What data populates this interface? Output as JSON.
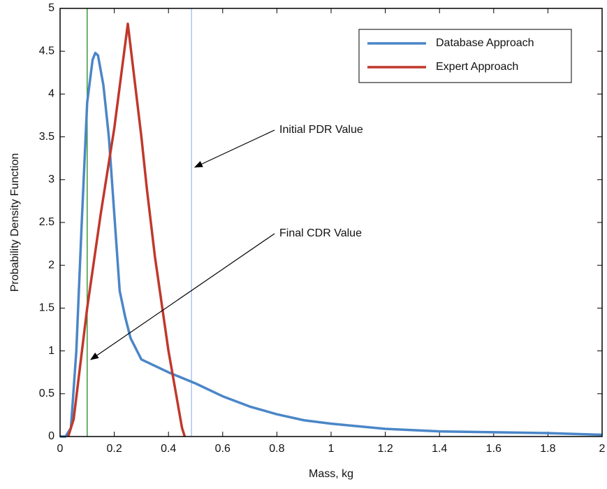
{
  "chart_data": {
    "type": "line",
    "xlabel": "Mass, kg",
    "ylabel": "Probability Density Function",
    "xlim": [
      0,
      2
    ],
    "ylim": [
      0,
      5
    ],
    "xticks": [
      0,
      0.2,
      0.4,
      0.6,
      0.8,
      1,
      1.2,
      1.4,
      1.6,
      1.8,
      2
    ],
    "yticks": [
      0,
      0.5,
      1,
      1.5,
      2,
      2.5,
      3,
      3.5,
      4,
      4.5,
      5
    ],
    "legend": "upper right",
    "series": [
      {
        "name": "Database Approach",
        "color": "#4a86c8",
        "x": [
          0,
          0.02,
          0.04,
          0.06,
          0.08,
          0.1,
          0.12,
          0.13,
          0.14,
          0.16,
          0.18,
          0.2,
          0.22,
          0.24,
          0.26,
          0.3,
          0.4,
          0.5,
          0.6,
          0.7,
          0.8,
          0.9,
          1.0,
          1.2,
          1.4,
          1.6,
          1.8,
          2.0
        ],
        "values": [
          0,
          0,
          0.1,
          1.0,
          2.5,
          3.9,
          4.4,
          4.48,
          4.45,
          4.1,
          3.5,
          2.6,
          1.7,
          1.4,
          1.15,
          0.9,
          0.75,
          0.62,
          0.47,
          0.35,
          0.26,
          0.19,
          0.15,
          0.09,
          0.06,
          0.05,
          0.04,
          0.02
        ]
      },
      {
        "name": "Expert Approach",
        "color": "#c0382b",
        "x": [
          0.03,
          0.05,
          0.1,
          0.15,
          0.2,
          0.25,
          0.3,
          0.32,
          0.35,
          0.4,
          0.45,
          0.46
        ],
        "values": [
          0,
          0.2,
          1.5,
          2.6,
          3.6,
          4.82,
          3.5,
          2.9,
          2.1,
          1.0,
          0.1,
          0
        ]
      }
    ],
    "reference_lines": [
      {
        "x": 0.1,
        "color": "#3a9a3a"
      },
      {
        "x": 0.485,
        "color": "#a9c4f5"
      }
    ],
    "annotations": [
      {
        "text": "Initial PDR Value"
      },
      {
        "text": "Final CDR Value"
      }
    ]
  }
}
